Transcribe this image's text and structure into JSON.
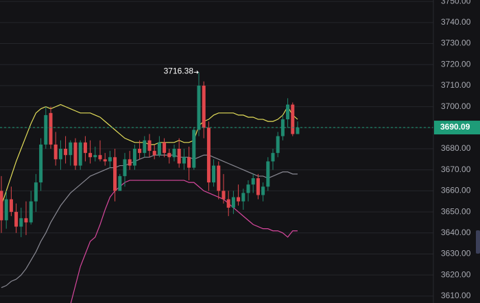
{
  "chart_data": {
    "type": "candlestick",
    "ylim": [
      3606.7,
      3750.7
    ],
    "yticks": [
      {
        "value": 3610,
        "label": "3610.00"
      },
      {
        "value": 3620,
        "label": "3620.00"
      },
      {
        "value": 3630,
        "label": "3630.00"
      },
      {
        "value": 3640,
        "label": "3640.00"
      },
      {
        "value": 3650,
        "label": "3650.00"
      },
      {
        "value": 3660,
        "label": "3660.00"
      },
      {
        "value": 3670,
        "label": "3670.00"
      },
      {
        "value": 3680,
        "label": "3680.00"
      },
      {
        "value": 3690,
        "label": "3690.00"
      },
      {
        "value": 3700,
        "label": "3700.00"
      },
      {
        "value": 3710,
        "label": "3710.00"
      },
      {
        "value": 3720,
        "label": "3720.00"
      },
      {
        "value": 3730,
        "label": "3730.00"
      },
      {
        "value": 3740,
        "label": "3740.00"
      },
      {
        "value": 3750,
        "label": "3750.00"
      }
    ],
    "grid": true,
    "up_color": "#1f8a70",
    "down_color": "#e0474c",
    "open": [
      3660,
      3646,
      3656,
      3650,
      3643,
      3647,
      3645,
      3655,
      3664,
      3682,
      3697,
      3682,
      3675,
      3680,
      3677,
      3683,
      3672,
      3683,
      3678,
      3676,
      3677,
      3675,
      3674,
      3676,
      3660,
      3667,
      3675,
      3672,
      3680,
      3678,
      3684,
      3679,
      3677,
      3683,
      3678,
      3676,
      3680,
      3673,
      3676,
      3671,
      3689,
      3710,
      3690,
      3664,
      3672,
      3660,
      3656,
      3652,
      3657,
      3655,
      3659,
      3663,
      3666,
      3658,
      3662,
      3674,
      3678,
      3686,
      3694,
      3701,
      3687
    ],
    "high": [
      3667,
      3660,
      3662,
      3654,
      3652,
      3655,
      3660,
      3668,
      3685,
      3700,
      3700,
      3688,
      3684,
      3686,
      3684,
      3685,
      3684,
      3686,
      3684,
      3681,
      3684,
      3678,
      3679,
      3680,
      3668,
      3678,
      3679,
      3682,
      3684,
      3686,
      3687,
      3682,
      3686,
      3685,
      3680,
      3682,
      3685,
      3680,
      3681,
      3690,
      3716.38,
      3712,
      3693,
      3675,
      3674,
      3668,
      3660,
      3660,
      3663,
      3661,
      3665,
      3668,
      3668,
      3664,
      3676,
      3680,
      3688,
      3696,
      3704,
      3702,
      3693
    ],
    "low": [
      3640,
      3642,
      3648,
      3640,
      3638,
      3639,
      3644,
      3650,
      3660,
      3680,
      3680,
      3672,
      3670,
      3673,
      3672,
      3670,
      3670,
      3674,
      3673,
      3674,
      3674,
      3672,
      3671,
      3655,
      3660,
      3662,
      3670,
      3670,
      3675,
      3676,
      3676,
      3675,
      3676,
      3676,
      3673,
      3674,
      3671,
      3670,
      3665,
      3670,
      3686,
      3685,
      3660,
      3662,
      3656,
      3654,
      3648,
      3649,
      3653,
      3651,
      3655,
      3659,
      3656,
      3655,
      3660,
      3670,
      3676,
      3684,
      3690,
      3686,
      3687
    ],
    "close": [
      3646,
      3656,
      3650,
      3643,
      3647,
      3645,
      3655,
      3664,
      3682,
      3696,
      3682,
      3675,
      3680,
      3677,
      3683,
      3672,
      3683,
      3678,
      3676,
      3677,
      3675,
      3674,
      3676,
      3660,
      3667,
      3675,
      3672,
      3680,
      3678,
      3684,
      3679,
      3677,
      3683,
      3678,
      3676,
      3680,
      3673,
      3676,
      3671,
      3689,
      3710,
      3690,
      3664,
      3672,
      3660,
      3656,
      3652,
      3657,
      3655,
      3659,
      3663,
      3666,
      3658,
      3662,
      3674,
      3678,
      3686,
      3694,
      3701,
      3687,
      3690.09
    ],
    "overlays": [
      {
        "color": "#e6e05a",
        "values": [
          3653,
          3660,
          3667,
          3674,
          3680,
          3686,
          3692,
          3697,
          3699,
          3700,
          3699,
          3700,
          3701,
          3700,
          3699,
          3698,
          3697,
          3697,
          3697,
          3696,
          3695,
          3693,
          3691,
          3689,
          3687,
          3685,
          3684,
          3683,
          3683,
          3683,
          3682,
          3682,
          3683,
          3683,
          3683,
          3683,
          3684,
          3683,
          3683,
          3684,
          3691,
          3693,
          3694,
          3696,
          3697,
          3697,
          3697,
          3697,
          3696,
          3696,
          3695,
          3695,
          3694,
          3694,
          3693,
          3693,
          3694,
          3696,
          3700,
          3696,
          3694
        ]
      },
      {
        "color": "#8a8a94",
        "values": [
          3614,
          3615,
          3617,
          3618,
          3620,
          3623,
          3627,
          3631,
          3636,
          3640,
          3645,
          3649,
          3653,
          3656,
          3659,
          3661,
          3663,
          3665,
          3667,
          3668,
          3669,
          3670,
          3671,
          3671,
          3672,
          3672,
          3673,
          3674,
          3675,
          3676,
          3676,
          3677,
          3677,
          3677,
          3677,
          3677,
          3676,
          3676,
          3676,
          3675,
          3676,
          3677,
          3677,
          3676,
          3675,
          3674,
          3673,
          3672,
          3671,
          3670,
          3669,
          3668,
          3667,
          3667,
          3666,
          3667,
          3668,
          3669,
          3669,
          3668,
          3668
        ]
      },
      {
        "color": "#d9489f",
        "values": [
          null,
          null,
          null,
          null,
          null,
          null,
          null,
          null,
          null,
          null,
          null,
          null,
          null,
          null,
          3606,
          3615,
          3624,
          3630,
          3636,
          3638,
          3644,
          3651,
          3657,
          3660,
          3662,
          3664,
          3665,
          3665,
          3665,
          3665,
          3665,
          3665,
          3665,
          3665,
          3665,
          3665,
          3665,
          3665,
          3664,
          3664,
          3662,
          3660,
          3659,
          3658,
          3657,
          3656,
          3654,
          3652,
          3650,
          3648,
          3646,
          3644,
          3643,
          3642,
          3642,
          3641,
          3641,
          3640,
          3638,
          3641,
          3641
        ]
      }
    ],
    "last_price": 3690.09,
    "last_price_color": "#1e9c78"
  }
}
